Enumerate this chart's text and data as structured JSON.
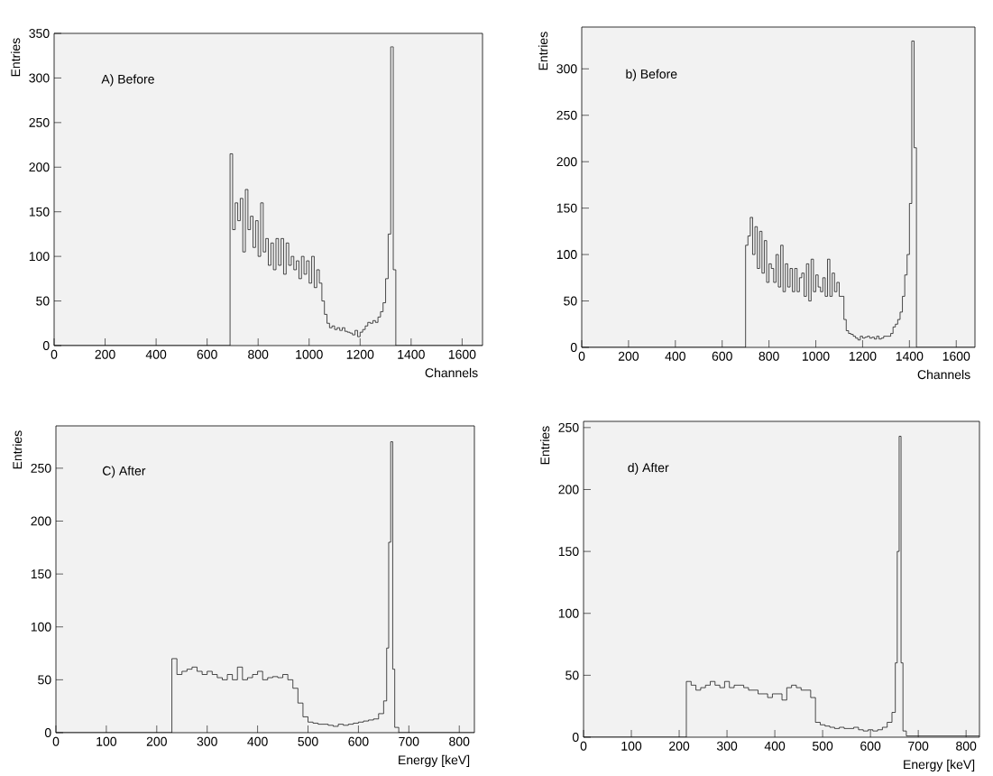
{
  "chart_data": [
    {
      "type": "histogram",
      "color": "#000000",
      "xlabel": "Channels",
      "ylabel": "Entries",
      "annotations": [
        "A) Before"
      ],
      "xlim": [
        0,
        1680
      ],
      "ylim": [
        0,
        350
      ],
      "xticks": [
        0,
        200,
        400,
        600,
        800,
        1000,
        1200,
        1400,
        1600
      ],
      "yticks": [
        0,
        50,
        100,
        150,
        200,
        250,
        300,
        350
      ],
      "bins": [
        0,
        690,
        700,
        710,
        720,
        730,
        740,
        750,
        760,
        770,
        780,
        790,
        800,
        810,
        820,
        830,
        840,
        850,
        860,
        870,
        880,
        890,
        900,
        910,
        920,
        930,
        940,
        950,
        960,
        970,
        980,
        990,
        1000,
        1010,
        1020,
        1030,
        1040,
        1050,
        1060,
        1070,
        1080,
        1090,
        1100,
        1110,
        1120,
        1130,
        1140,
        1150,
        1160,
        1170,
        1180,
        1190,
        1200,
        1210,
        1220,
        1230,
        1240,
        1250,
        1260,
        1270,
        1280,
        1290,
        1300,
        1310,
        1320,
        1330,
        1340,
        1680
      ],
      "values": [
        0,
        215,
        130,
        160,
        140,
        165,
        105,
        175,
        130,
        145,
        110,
        140,
        100,
        160,
        105,
        120,
        90,
        115,
        85,
        120,
        90,
        120,
        80,
        115,
        90,
        100,
        85,
        95,
        75,
        100,
        80,
        95,
        70,
        100,
        65,
        85,
        70,
        50,
        35,
        25,
        20,
        22,
        18,
        20,
        17,
        20,
        16,
        15,
        14,
        12,
        17,
        10,
        15,
        18,
        22,
        26,
        25,
        28,
        26,
        32,
        38,
        48,
        75,
        125,
        335,
        85,
        0
      ]
    },
    {
      "type": "histogram",
      "color": "#000000",
      "xlabel": "Channels",
      "ylabel": "Entries",
      "annotations": [
        "b) Before"
      ],
      "xlim": [
        0,
        1680
      ],
      "ylim": [
        0,
        345
      ],
      "xticks": [
        0,
        200,
        400,
        600,
        800,
        1000,
        1200,
        1400,
        1600
      ],
      "yticks": [
        0,
        50,
        100,
        150,
        200,
        250,
        300
      ],
      "bins": [
        0,
        700,
        710,
        720,
        730,
        740,
        750,
        760,
        770,
        780,
        790,
        800,
        810,
        820,
        830,
        840,
        850,
        860,
        870,
        880,
        890,
        900,
        910,
        920,
        930,
        940,
        950,
        960,
        970,
        980,
        990,
        1000,
        1010,
        1020,
        1030,
        1040,
        1050,
        1060,
        1070,
        1080,
        1090,
        1100,
        1110,
        1120,
        1130,
        1140,
        1150,
        1160,
        1170,
        1180,
        1190,
        1200,
        1210,
        1220,
        1230,
        1240,
        1250,
        1260,
        1270,
        1280,
        1290,
        1300,
        1310,
        1320,
        1330,
        1340,
        1350,
        1360,
        1370,
        1380,
        1390,
        1400,
        1410,
        1420,
        1430,
        1680
      ],
      "values": [
        0,
        110,
        120,
        140,
        100,
        130,
        85,
        125,
        80,
        115,
        70,
        90,
        85,
        70,
        100,
        65,
        110,
        60,
        90,
        65,
        85,
        60,
        85,
        60,
        75,
        80,
        55,
        90,
        50,
        95,
        60,
        78,
        65,
        60,
        75,
        55,
        95,
        55,
        80,
        60,
        70,
        55,
        55,
        30,
        18,
        15,
        14,
        12,
        10,
        8,
        12,
        10,
        11,
        12,
        10,
        11,
        9,
        12,
        9,
        10,
        12,
        12,
        12,
        15,
        22,
        25,
        30,
        38,
        55,
        78,
        100,
        155,
        330,
        215,
        0
      ]
    },
    {
      "type": "histogram",
      "color": "#000000",
      "xlabel": "Energy [keV]",
      "ylabel": "Entries",
      "annotations": [
        "C) After"
      ],
      "xlim": [
        0,
        830
      ],
      "ylim": [
        0,
        290
      ],
      "xticks": [
        0,
        100,
        200,
        300,
        400,
        500,
        600,
        700,
        800
      ],
      "yticks": [
        0,
        50,
        100,
        150,
        200,
        250
      ],
      "bins": [
        0,
        230,
        240,
        250,
        260,
        270,
        280,
        290,
        300,
        310,
        320,
        330,
        340,
        350,
        360,
        370,
        380,
        390,
        400,
        410,
        420,
        430,
        440,
        450,
        460,
        470,
        480,
        490,
        500,
        510,
        520,
        530,
        540,
        550,
        560,
        570,
        580,
        590,
        600,
        610,
        620,
        630,
        640,
        650,
        656,
        660,
        664,
        668,
        672,
        680,
        830
      ],
      "values": [
        0,
        70,
        55,
        58,
        60,
        62,
        58,
        55,
        58,
        55,
        52,
        50,
        55,
        50,
        62,
        50,
        52,
        55,
        58,
        50,
        52,
        53,
        52,
        55,
        50,
        42,
        28,
        15,
        10,
        9,
        8,
        8,
        7,
        6,
        8,
        7,
        8,
        9,
        10,
        11,
        12,
        13,
        18,
        30,
        80,
        180,
        275,
        60,
        5,
        0
      ]
    },
    {
      "type": "histogram",
      "color": "#000000",
      "xlabel": "Energy [keV]",
      "ylabel": "Entries",
      "annotations": [
        "d) After"
      ],
      "xlim": [
        0,
        828
      ],
      "ylim": [
        0,
        255
      ],
      "xticks": [
        0,
        100,
        200,
        300,
        400,
        500,
        600,
        700,
        800
      ],
      "yticks": [
        0,
        50,
        100,
        150,
        200,
        250
      ],
      "bins": [
        0,
        215,
        225,
        235,
        245,
        255,
        265,
        275,
        285,
        295,
        305,
        315,
        325,
        335,
        345,
        355,
        365,
        375,
        385,
        395,
        405,
        415,
        425,
        435,
        445,
        455,
        465,
        475,
        485,
        495,
        505,
        515,
        525,
        535,
        545,
        555,
        565,
        575,
        585,
        595,
        605,
        615,
        625,
        635,
        645,
        652,
        656,
        660,
        664,
        668,
        675,
        828
      ],
      "values": [
        0,
        45,
        42,
        38,
        40,
        42,
        45,
        42,
        40,
        45,
        40,
        42,
        42,
        40,
        38,
        38,
        35,
        35,
        32,
        35,
        35,
        30,
        40,
        42,
        40,
        38,
        38,
        32,
        12,
        10,
        9,
        8,
        7,
        8,
        7,
        7,
        8,
        6,
        5,
        6,
        5,
        6,
        8,
        12,
        20,
        60,
        150,
        243,
        60,
        5,
        1
      ]
    }
  ]
}
